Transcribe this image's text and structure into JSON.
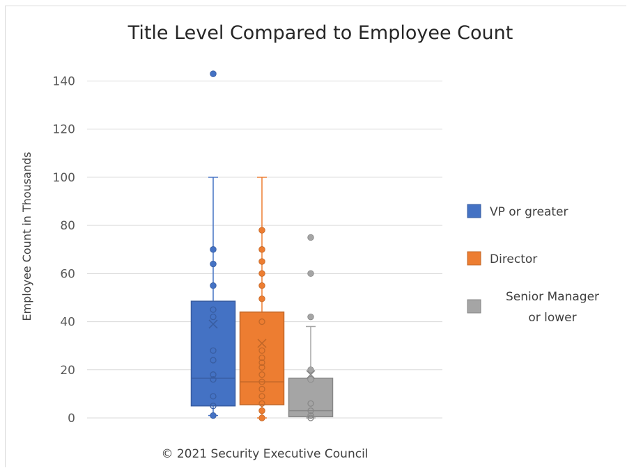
{
  "chart_data": {
    "type": "box",
    "title": "Title Level Compared to Employee Count",
    "xlabel": "",
    "ylabel": "Employee Count in Thousands",
    "ylim": [
      0,
      150
    ],
    "yticks": [
      0,
      20,
      40,
      60,
      80,
      100,
      120,
      140
    ],
    "grid": true,
    "legend_position": "right",
    "footer": "© 2021 Security Executive Council",
    "series": [
      {
        "name": "VP or greater",
        "color": "#4472C4",
        "stats": {
          "min": 1,
          "q1": 5,
          "median": 16.5,
          "mean": 39,
          "q3": 48.5,
          "whisker_high": 100
        },
        "outliers": [
          143
        ],
        "filled_points": [
          1,
          55,
          64,
          70
        ],
        "hollow_points": [
          5,
          9,
          16,
          18,
          24,
          28,
          42,
          45
        ]
      },
      {
        "name": "Director",
        "color": "#ED7D31",
        "stats": {
          "min": 0,
          "q1": 5.5,
          "median": 15,
          "mean": 31,
          "q3": 44,
          "whisker_high": 100
        },
        "outliers": [],
        "filled_points": [
          0,
          3,
          49.5,
          55,
          60,
          65,
          70,
          78
        ],
        "hollow_points": [
          6,
          9,
          12,
          15,
          18,
          21,
          23,
          25,
          28,
          40
        ]
      },
      {
        "name": "Senior Manager or lower",
        "color": "#A5A5A5",
        "stats": {
          "min": 0,
          "q1": 0.5,
          "median": 3,
          "mean": 18,
          "q3": 16.5,
          "whisker_high": 38
        },
        "outliers": [
          42,
          60,
          75
        ],
        "filled_points": [
          16,
          20
        ],
        "hollow_points": [
          0,
          1,
          3,
          6
        ]
      }
    ]
  }
}
